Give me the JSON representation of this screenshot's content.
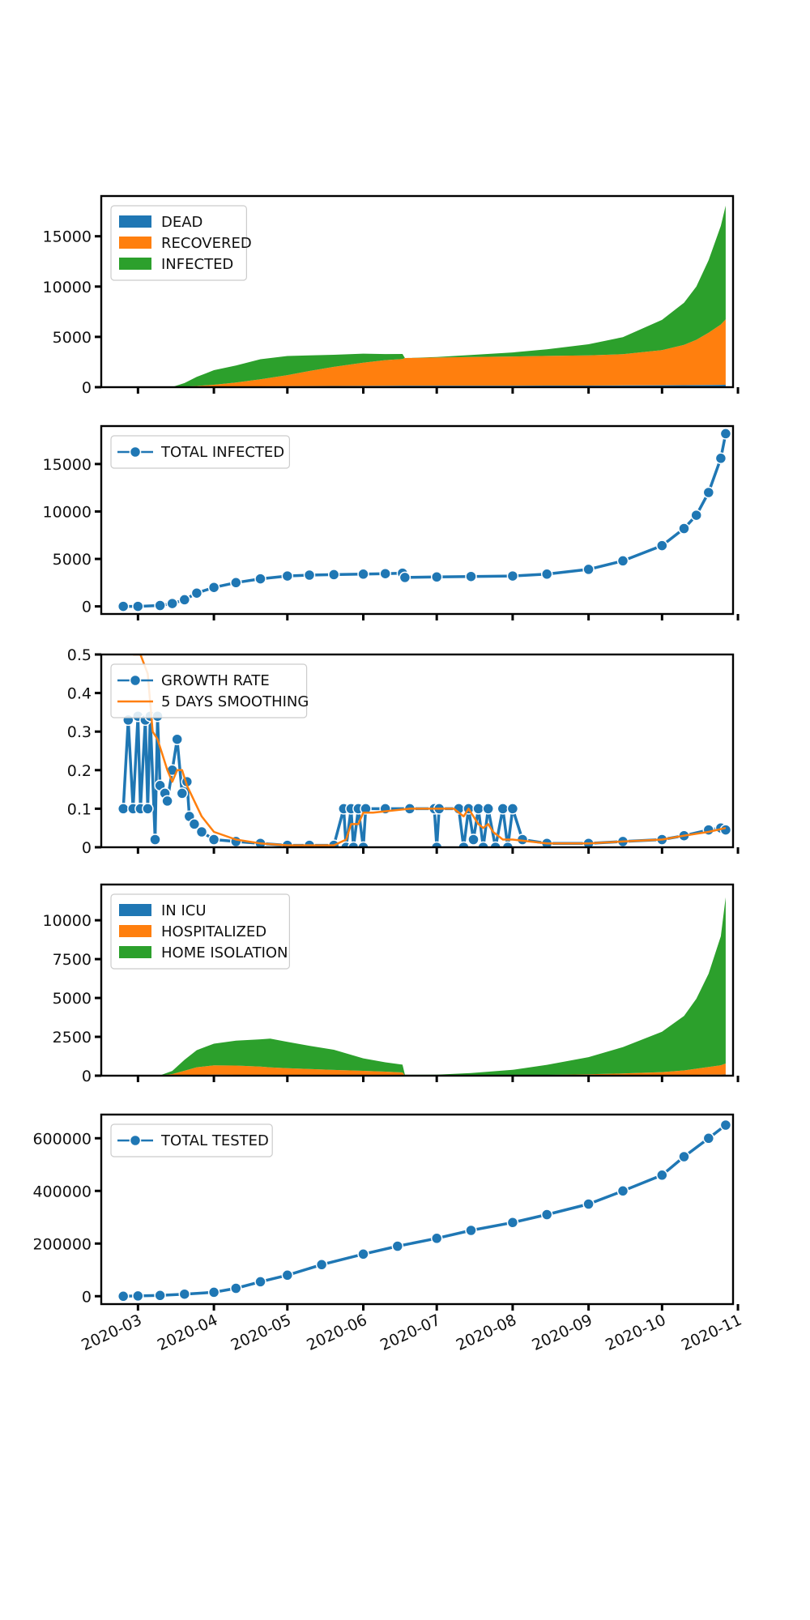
{
  "chart_data": [
    {
      "type": "area",
      "stacked": true,
      "legend_position": "top-left",
      "grid": false,
      "title": "",
      "xlabel": "",
      "ylabel": "",
      "x_range": [
        "2020-02-15",
        "2020-10-30"
      ],
      "ylim": [
        0,
        19000
      ],
      "yticks": [
        0,
        5000,
        10000,
        15000
      ],
      "x": [
        "2020-02-24",
        "2020-03-01",
        "2020-03-10",
        "2020-03-15",
        "2020-03-20",
        "2020-03-25",
        "2020-04-01",
        "2020-04-10",
        "2020-04-20",
        "2020-05-01",
        "2020-05-10",
        "2020-05-20",
        "2020-06-01",
        "2020-06-10",
        "2020-06-17",
        "2020-06-18",
        "2020-07-01",
        "2020-07-15",
        "2020-08-01",
        "2020-08-15",
        "2020-09-01",
        "2020-09-15",
        "2020-10-01",
        "2020-10-10",
        "2020-10-15",
        "2020-10-20",
        "2020-10-25",
        "2020-10-27"
      ],
      "series": [
        {
          "name": "DEAD",
          "color": "#1f77b4",
          "values": [
            0,
            0,
            0,
            5,
            10,
            20,
            40,
            60,
            80,
            100,
            110,
            120,
            130,
            140,
            150,
            150,
            150,
            150,
            155,
            160,
            165,
            175,
            190,
            200,
            210,
            220,
            230,
            240
          ]
        },
        {
          "name": "RECOVERED",
          "color": "#ff7f0e",
          "values": [
            0,
            0,
            0,
            10,
            50,
            100,
            200,
            400,
            700,
            1100,
            1500,
            1900,
            2300,
            2550,
            2650,
            2750,
            2800,
            2850,
            2900,
            2950,
            3000,
            3100,
            3500,
            4000,
            4500,
            5200,
            6000,
            6500
          ]
        },
        {
          "name": "INFECTED",
          "color": "#2ca02c",
          "values": [
            0,
            0,
            0,
            10,
            350,
            900,
            1450,
            1700,
            2000,
            1900,
            1550,
            1200,
            900,
            600,
            500,
            0,
            50,
            200,
            400,
            650,
            1100,
            1700,
            3000,
            4200,
            5300,
            7200,
            9800,
            11300
          ]
        }
      ]
    },
    {
      "type": "line",
      "legend_position": "top-left",
      "grid": false,
      "title": "",
      "xlabel": "",
      "ylabel": "",
      "x_range": [
        "2020-02-15",
        "2020-10-30"
      ],
      "ylim": [
        -800,
        19000
      ],
      "yticks": [
        0,
        5000,
        10000,
        15000
      ],
      "series": [
        {
          "name": "TOTAL INFECTED",
          "color": "#1f77b4",
          "marker": "circle",
          "x": [
            "2020-02-24",
            "2020-03-01",
            "2020-03-10",
            "2020-03-15",
            "2020-03-20",
            "2020-03-25",
            "2020-04-01",
            "2020-04-10",
            "2020-04-20",
            "2020-05-01",
            "2020-05-10",
            "2020-05-20",
            "2020-06-01",
            "2020-06-10",
            "2020-06-17",
            "2020-06-18",
            "2020-07-01",
            "2020-07-15",
            "2020-08-01",
            "2020-08-15",
            "2020-09-01",
            "2020-09-15",
            "2020-10-01",
            "2020-10-10",
            "2020-10-15",
            "2020-10-20",
            "2020-10-25",
            "2020-10-27"
          ],
          "values": [
            0,
            0,
            100,
            300,
            700,
            1400,
            2000,
            2500,
            2900,
            3200,
            3300,
            3350,
            3400,
            3450,
            3500,
            3050,
            3100,
            3150,
            3200,
            3400,
            3900,
            4800,
            6400,
            8200,
            9600,
            12000,
            15600,
            18200
          ]
        }
      ]
    },
    {
      "type": "line",
      "legend_position": "top-left",
      "grid": false,
      "title": "",
      "xlabel": "",
      "ylabel": "",
      "x_range": [
        "2020-02-15",
        "2020-10-30"
      ],
      "ylim": [
        0,
        0.5
      ],
      "yticks": [
        0.0,
        0.1,
        0.2,
        0.3,
        0.4,
        0.5
      ],
      "series": [
        {
          "name": "GROWTH RATE",
          "color": "#1f77b4",
          "marker": "circle",
          "x": [
            "2020-02-24",
            "2020-02-26",
            "2020-02-28",
            "2020-03-01",
            "2020-03-02",
            "2020-03-04",
            "2020-03-05",
            "2020-03-06",
            "2020-03-08",
            "2020-03-09",
            "2020-03-10",
            "2020-03-12",
            "2020-03-13",
            "2020-03-15",
            "2020-03-17",
            "2020-03-19",
            "2020-03-21",
            "2020-03-22",
            "2020-03-24",
            "2020-03-27",
            "2020-04-01",
            "2020-04-10",
            "2020-04-20",
            "2020-05-01",
            "2020-05-10",
            "2020-05-20",
            "2020-05-24",
            "2020-05-25",
            "2020-05-27",
            "2020-05-28",
            "2020-05-30",
            "2020-06-01",
            "2020-06-02",
            "2020-06-10",
            "2020-06-20",
            "2020-06-30",
            "2020-07-01",
            "2020-07-02",
            "2020-07-10",
            "2020-07-12",
            "2020-07-14",
            "2020-07-16",
            "2020-07-18",
            "2020-07-20",
            "2020-07-22",
            "2020-07-25",
            "2020-07-28",
            "2020-07-30",
            "2020-08-01",
            "2020-08-05",
            "2020-08-15",
            "2020-09-01",
            "2020-09-15",
            "2020-10-01",
            "2020-10-10",
            "2020-10-20",
            "2020-10-25",
            "2020-10-27"
          ],
          "values": [
            0.1,
            0.33,
            0.1,
            0.34,
            0.1,
            0.33,
            0.1,
            0.34,
            0.02,
            0.34,
            0.16,
            0.14,
            0.12,
            0.2,
            0.28,
            0.14,
            0.17,
            0.08,
            0.06,
            0.04,
            0.02,
            0.015,
            0.01,
            0.005,
            0.005,
            0.005,
            0.1,
            0.0,
            0.1,
            0.0,
            0.1,
            0.0,
            0.1,
            0.1,
            0.1,
            0.1,
            0.0,
            0.1,
            0.1,
            0.0,
            0.1,
            0.02,
            0.1,
            0.0,
            0.1,
            0.0,
            0.1,
            0.0,
            0.1,
            0.02,
            0.01,
            0.01,
            0.015,
            0.02,
            0.03,
            0.045,
            0.05,
            0.045
          ]
        },
        {
          "name": "5 DAYS SMOOTHING",
          "color": "#ff7f0e",
          "marker": "none",
          "x": [
            "2020-02-28",
            "2020-03-02",
            "2020-03-05",
            "2020-03-07",
            "2020-03-09",
            "2020-03-11",
            "2020-03-13",
            "2020-03-15",
            "2020-03-17",
            "2020-03-19",
            "2020-03-21",
            "2020-03-24",
            "2020-03-27",
            "2020-04-01",
            "2020-04-10",
            "2020-04-20",
            "2020-05-01",
            "2020-05-10",
            "2020-05-20",
            "2020-05-25",
            "2020-05-27",
            "2020-05-30",
            "2020-06-01",
            "2020-06-05",
            "2020-06-20",
            "2020-07-01",
            "2020-07-08",
            "2020-07-12",
            "2020-07-14",
            "2020-07-16",
            "2020-07-18",
            "2020-07-20",
            "2020-07-22",
            "2020-07-24",
            "2020-07-28",
            "2020-08-01",
            "2020-08-15",
            "2020-09-01",
            "2020-09-15",
            "2020-10-01",
            "2020-10-10",
            "2020-10-20",
            "2020-10-27"
          ],
          "values": [
            0.5,
            0.5,
            0.45,
            0.3,
            0.28,
            0.24,
            0.2,
            0.17,
            0.2,
            0.2,
            0.16,
            0.12,
            0.08,
            0.04,
            0.02,
            0.01,
            0.005,
            0.005,
            0.005,
            0.02,
            0.06,
            0.06,
            0.09,
            0.09,
            0.1,
            0.1,
            0.1,
            0.08,
            0.1,
            0.08,
            0.06,
            0.05,
            0.06,
            0.04,
            0.02,
            0.02,
            0.01,
            0.01,
            0.015,
            0.02,
            0.03,
            0.04,
            0.05
          ]
        }
      ]
    },
    {
      "type": "area",
      "stacked": true,
      "legend_position": "top-left",
      "grid": false,
      "title": "",
      "xlabel": "",
      "ylabel": "",
      "x_range": [
        "2020-02-15",
        "2020-10-30"
      ],
      "ylim": [
        0,
        12300
      ],
      "yticks": [
        0,
        2500,
        5000,
        7500,
        10000
      ],
      "x": [
        "2020-02-24",
        "2020-03-01",
        "2020-03-10",
        "2020-03-15",
        "2020-03-20",
        "2020-03-25",
        "2020-04-01",
        "2020-04-10",
        "2020-04-20",
        "2020-04-24",
        "2020-05-01",
        "2020-05-10",
        "2020-05-20",
        "2020-06-01",
        "2020-06-10",
        "2020-06-17",
        "2020-06-18",
        "2020-07-01",
        "2020-07-15",
        "2020-08-01",
        "2020-08-15",
        "2020-09-01",
        "2020-09-15",
        "2020-10-01",
        "2020-10-10",
        "2020-10-15",
        "2020-10-20",
        "2020-10-25",
        "2020-10-27"
      ],
      "series": [
        {
          "name": "IN ICU",
          "color": "#1f77b4",
          "values": [
            0,
            0,
            0,
            5,
            20,
            40,
            60,
            50,
            40,
            35,
            30,
            25,
            20,
            15,
            10,
            10,
            5,
            5,
            5,
            5,
            10,
            15,
            20,
            30,
            40,
            50,
            60,
            70,
            80
          ]
        },
        {
          "name": "HOSPITALIZED",
          "color": "#ff7f0e",
          "values": [
            0,
            0,
            10,
            100,
            300,
            500,
            600,
            600,
            550,
            500,
            450,
            400,
            350,
            300,
            250,
            200,
            10,
            10,
            10,
            20,
            40,
            80,
            120,
            200,
            300,
            400,
            500,
            600,
            700
          ]
        },
        {
          "name": "HOME ISOLATION",
          "color": "#2ca02c",
          "values": [
            0,
            0,
            10,
            200,
            700,
            1100,
            1400,
            1600,
            1750,
            1850,
            1700,
            1500,
            1300,
            800,
            600,
            500,
            40,
            50,
            150,
            350,
            650,
            1100,
            1700,
            2600,
            3500,
            4500,
            6000,
            8300,
            10700
          ]
        }
      ]
    },
    {
      "type": "line",
      "legend_position": "top-left",
      "grid": false,
      "title": "",
      "xlabel": "",
      "ylabel": "",
      "x_range": [
        "2020-02-15",
        "2020-10-30"
      ],
      "ylim": [
        -30000,
        690000
      ],
      "yticks": [
        0,
        200000,
        400000,
        600000
      ],
      "xticks": [
        "2020-03",
        "2020-04",
        "2020-05",
        "2020-06",
        "2020-07",
        "2020-08",
        "2020-09",
        "2020-10",
        "2020-11"
      ],
      "series": [
        {
          "name": "TOTAL TESTED",
          "color": "#1f77b4",
          "marker": "circle",
          "x": [
            "2020-02-24",
            "2020-03-01",
            "2020-03-10",
            "2020-03-20",
            "2020-04-01",
            "2020-04-10",
            "2020-04-20",
            "2020-05-01",
            "2020-05-15",
            "2020-06-01",
            "2020-06-15",
            "2020-07-01",
            "2020-07-15",
            "2020-08-01",
            "2020-08-15",
            "2020-09-01",
            "2020-09-15",
            "2020-10-01",
            "2020-10-10",
            "2020-10-20",
            "2020-10-27"
          ],
          "values": [
            0,
            1000,
            3000,
            8000,
            15000,
            30000,
            55000,
            80000,
            120000,
            160000,
            190000,
            220000,
            250000,
            280000,
            310000,
            350000,
            400000,
            460000,
            530000,
            600000,
            650000
          ]
        }
      ]
    }
  ]
}
